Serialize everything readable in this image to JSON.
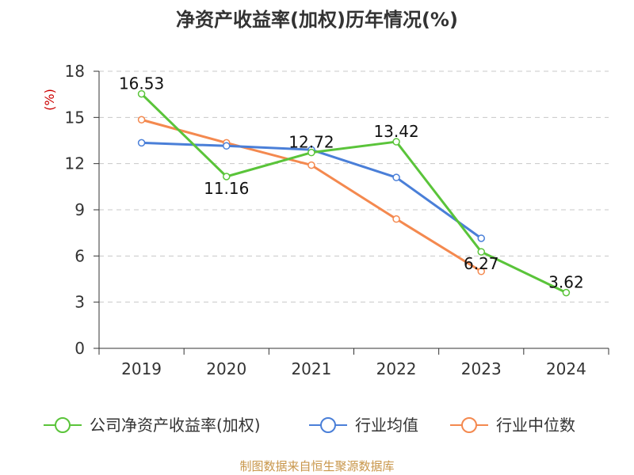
{
  "chart_data": {
    "type": "line",
    "title": "净资产收益率(加权)历年情况(%)",
    "ylabel": "(%)",
    "categories": [
      "2019",
      "2020",
      "2021",
      "2022",
      "2023",
      "2024"
    ],
    "ylim": [
      0,
      18
    ],
    "yticks": [
      0,
      3,
      6,
      9,
      12,
      15,
      18
    ],
    "grid": true,
    "legend_position": "bottom",
    "series": [
      {
        "name": "公司净资产收益率(加权)",
        "color": "#5ac43a",
        "values": [
          16.53,
          11.16,
          12.72,
          13.42,
          6.27,
          3.62
        ],
        "labels": [
          "16.53",
          "11.16",
          "12.72",
          "13.42",
          "6.27",
          "3.62"
        ]
      },
      {
        "name": "行业均值",
        "color": "#4a7fd8",
        "values": [
          13.35,
          13.15,
          12.9,
          11.1,
          7.15,
          null
        ]
      },
      {
        "name": "行业中位数",
        "color": "#f4894f",
        "values": [
          14.85,
          13.35,
          11.9,
          8.4,
          5.0,
          null
        ]
      }
    ]
  },
  "colors": {
    "unit_label": "#cc0000",
    "source_text": "#c8964a",
    "grid": "#c8c8c8",
    "axis": "#333333"
  },
  "footer": {
    "source": "制图数据来自恒生聚源数据库"
  }
}
